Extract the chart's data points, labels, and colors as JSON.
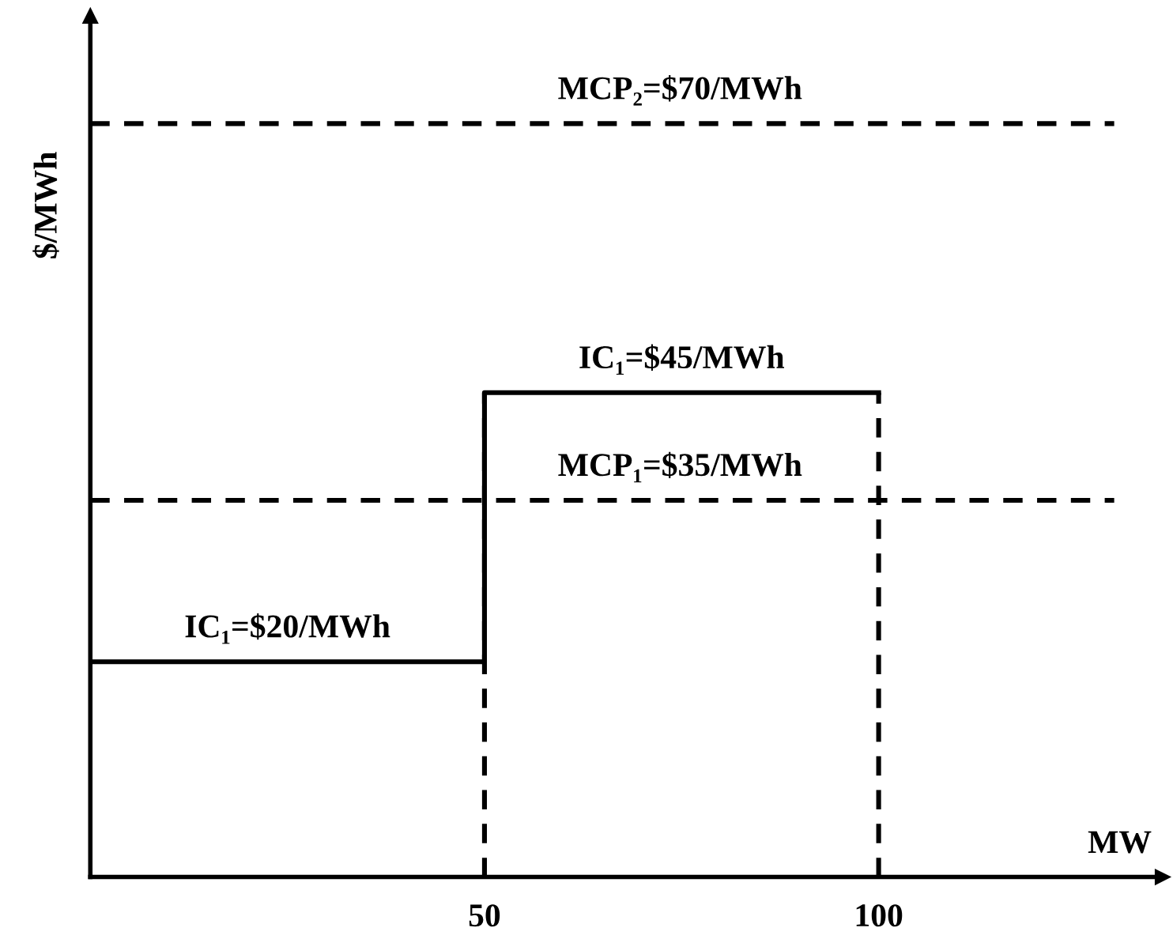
{
  "chart_data": {
    "type": "step",
    "xlabel": "MW",
    "ylabel": "$/MWh",
    "x": [
      0,
      50,
      100
    ],
    "series": [
      {
        "values": [
          20,
          45,
          45
        ],
        "color": "#000000"
      }
    ],
    "xlim": [
      0,
      136
    ],
    "ylim": [
      0,
      80
    ],
    "xticks": [
      50,
      100
    ],
    "tick_labels": "x",
    "grid": false,
    "legend": false,
    "marker": "none",
    "line_style": "solid",
    "ref_lines": [
      {
        "axis": "y",
        "value": 70,
        "label": "MCP₂=$70/MWh",
        "line_style": "dashed",
        "color": "#000000"
      },
      {
        "axis": "y",
        "value": 35,
        "label": "MCP₁=$35/MWh",
        "line_style": "dashed",
        "color": "#000000"
      },
      {
        "axis": "x",
        "value": 50,
        "line_style": "dashed",
        "color": "#000000"
      },
      {
        "axis": "x",
        "value": 100,
        "line_style": "dashed",
        "color": "#000000"
      }
    ],
    "annotations": [
      {
        "text": "IC₁=$20/MWh",
        "x": 25,
        "y": 20
      },
      {
        "text": "IC₁=$45/MWh",
        "x": 75,
        "y": 45
      }
    ]
  }
}
